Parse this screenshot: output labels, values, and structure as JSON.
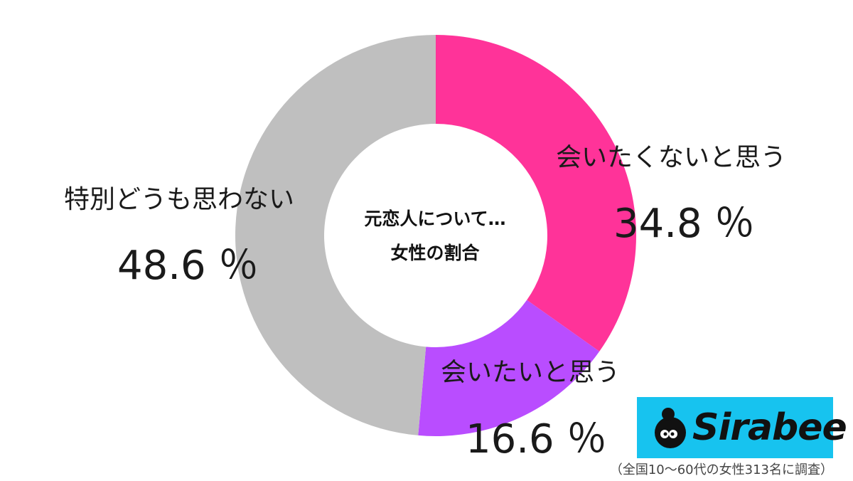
{
  "chart_data": {
    "type": "pie",
    "center_title": [
      "元恋人について…",
      "女性の割合"
    ],
    "unit": "％",
    "slices": [
      {
        "label": "会いたくないと思う",
        "value": 34.8,
        "value_text": "34.8 ％",
        "color": "#ff3399"
      },
      {
        "label": "会いたいと思う",
        "value": 16.6,
        "value_text": "16.6 ％",
        "color": "#b94dff"
      },
      {
        "label": "特別どうも思わない",
        "value": 48.6,
        "value_text": "48.6 ％",
        "color": "#bfbfbf"
      }
    ]
  },
  "brand": {
    "name": "Sirabee",
    "color": "#17c3ef"
  },
  "footnote": "（全国10～60代の女性313名に調査）"
}
